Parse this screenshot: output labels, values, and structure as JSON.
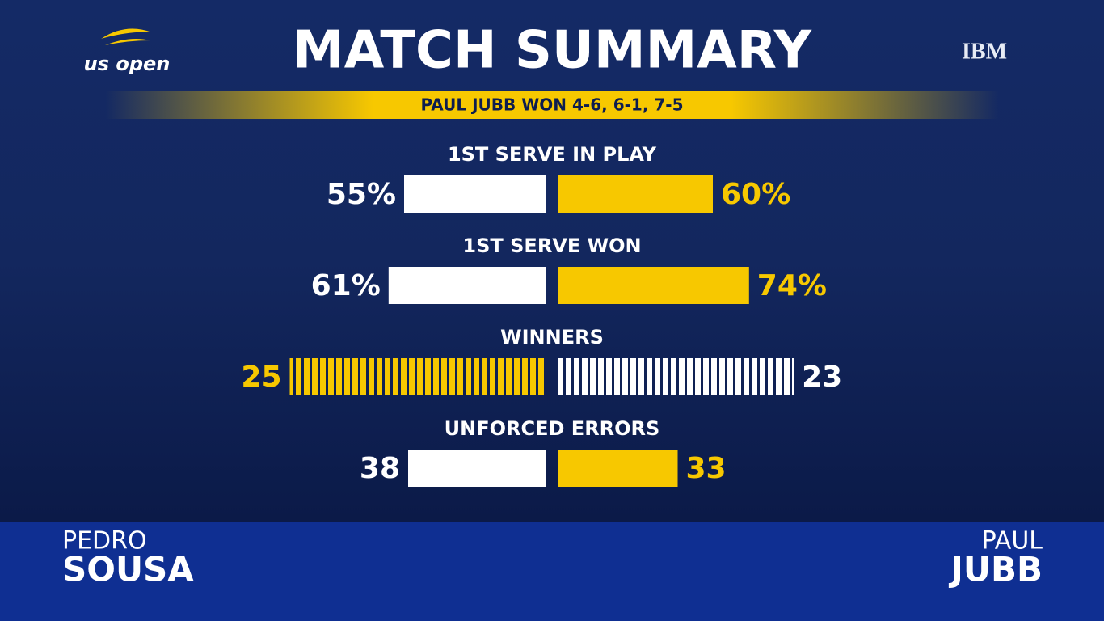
{
  "header": {
    "logo_left": "us open",
    "title": "MATCH SUMMARY",
    "logo_right": "IBM"
  },
  "result": "PAUL JUBB WON 4-6, 6-1, 7-5",
  "stats": [
    {
      "label": "1ST SERVE IN PLAY",
      "values": [
        55,
        60
      ],
      "value_labels": [
        "55%",
        "60%"
      ],
      "colors": [
        "#ffffff",
        "#f7c800"
      ]
    },
    {
      "label": "1ST SERVE WON",
      "values": [
        61,
        74
      ],
      "value_labels": [
        "61%",
        "74%"
      ],
      "colors": [
        "#ffffff",
        "#f7c800"
      ]
    },
    {
      "label": "WINNERS",
      "values": [
        25,
        23
      ],
      "colors": [
        "#f7c800",
        "#ffffff"
      ],
      "striped": true
    },
    {
      "label": "UNFORCED ERRORS",
      "values": [
        38,
        33
      ],
      "colors": [
        "#ffffff",
        "#f7c800"
      ]
    }
  ],
  "players": [
    {
      "first": "PEDRO",
      "last": "SOUSA"
    },
    {
      "first": "PAUL",
      "last": "JUBB"
    }
  ]
}
